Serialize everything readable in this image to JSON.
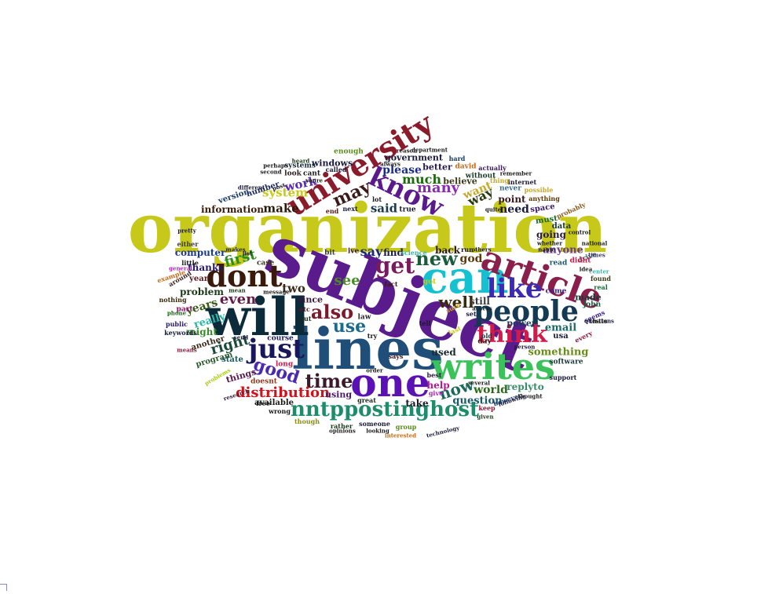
{
  "words": [
    {
      "text": "organization",
      "color": "#c7c91a"
    },
    {
      "text": "subject",
      "color": "#5a1b8c"
    },
    {
      "text": "lines",
      "color": "#1f4e79"
    },
    {
      "text": "will",
      "color": "#0b2a3a"
    },
    {
      "text": "can",
      "color": "#13c1d0"
    },
    {
      "text": "writes",
      "color": "#3bc25a"
    },
    {
      "text": "one",
      "color": "#5b12b5"
    },
    {
      "text": "article",
      "color": "#8a1f4b"
    },
    {
      "text": "university",
      "color": "#8a1b2b"
    },
    {
      "text": "people",
      "color": "#133a52"
    },
    {
      "text": "dont",
      "color": "#3a1a0b"
    },
    {
      "text": "just",
      "color": "#17175a"
    },
    {
      "text": "know",
      "color": "#5a1a8c"
    },
    {
      "text": "like",
      "color": "#3a2ab5"
    },
    {
      "text": "think",
      "color": "#d21a4b"
    },
    {
      "text": "nntppostinghost",
      "color": "#1e8c6a"
    },
    {
      "text": "get",
      "color": "#7a1a5c"
    },
    {
      "text": "also",
      "color": "#7a1a2b"
    },
    {
      "text": "time",
      "color": "#3a1a2b"
    },
    {
      "text": "good",
      "color": "#4a2ab5"
    },
    {
      "text": "new",
      "color": "#1a5c3a"
    },
    {
      "text": "many",
      "color": "#8a2ab5"
    },
    {
      "text": "may",
      "color": "#3a1a1a"
    },
    {
      "text": "use",
      "color": "#1a6a8c"
    },
    {
      "text": "well",
      "color": "#3a2a0b"
    },
    {
      "text": "now",
      "color": "#1a6a5c"
    },
    {
      "text": "distribution",
      "color": "#d2121a"
    },
    {
      "text": "much",
      "color": "#1a6a0b"
    },
    {
      "text": "way",
      "color": "#2a3a0b"
    },
    {
      "text": "even",
      "color": "#6a1a4b"
    },
    {
      "text": "right",
      "color": "#1a4a3a"
    },
    {
      "text": "first",
      "color": "#2a8c1a"
    },
    {
      "text": "see",
      "color": "#4a8c2a"
    },
    {
      "text": "say",
      "color": "#1a2a7a"
    },
    {
      "text": "make",
      "color": "#2a1a0b"
    },
    {
      "text": "system",
      "color": "#c7c91a"
    },
    {
      "text": "work",
      "color": "#5a2ab5"
    },
    {
      "text": "two",
      "color": "#3a2a1a"
    },
    {
      "text": "want",
      "color": "#c7a92a"
    },
    {
      "text": "said",
      "color": "#1a3a4b"
    },
    {
      "text": "need",
      "color": "#1a1a3a"
    },
    {
      "text": "please",
      "color": "#1a2a8c"
    },
    {
      "text": "god",
      "color": "#5a3a0b"
    },
    {
      "text": "years",
      "color": "#3a5a1a"
    },
    {
      "text": "world",
      "color": "#2a6a1a"
    },
    {
      "text": "question",
      "color": "#1a5a6a"
    },
    {
      "text": "replyto",
      "color": "#3a8c6a"
    },
    {
      "text": "something",
      "color": "#6a8c1a"
    },
    {
      "text": "email",
      "color": "#1a6a6a"
    },
    {
      "text": "computer",
      "color": "#1a3a8c"
    },
    {
      "text": "thanks",
      "color": "#2a1a6a"
    },
    {
      "text": "problem",
      "color": "#1a3a1a"
    },
    {
      "text": "information",
      "color": "#3a1a0b"
    },
    {
      "text": "really",
      "color": "#2ab5a9"
    },
    {
      "text": "might",
      "color": "#3a8c2a"
    },
    {
      "text": "going",
      "color": "#2a1a3a"
    },
    {
      "text": "anyone",
      "color": "#6a3a8c"
    },
    {
      "text": "government",
      "color": "#1a1a3a"
    },
    {
      "text": "used",
      "color": "#1a2a2a"
    },
    {
      "text": "help",
      "color": "#b51a8c"
    },
    {
      "text": "take",
      "color": "#1a1a2a"
    },
    {
      "text": "available",
      "color": "#1a1a1a"
    },
    {
      "text": "using",
      "color": "#4a1a6a"
    },
    {
      "text": "since",
      "color": "#3a1a3a"
    },
    {
      "text": "still",
      "color": "#3a3a3a"
    },
    {
      "text": "back",
      "color": "#2a1a1a"
    },
    {
      "text": "point",
      "color": "#3a1a1a"
    },
    {
      "text": "made",
      "color": "#1a3a3a"
    },
    {
      "text": "find",
      "color": "#1a1a4b"
    },
    {
      "text": "believe",
      "color": "#3a3a1a"
    },
    {
      "text": "better",
      "color": "#2a1a4b"
    },
    {
      "text": "things",
      "color": "#5a1a4b"
    },
    {
      "text": "program",
      "color": "#2a5a2a"
    },
    {
      "text": "another",
      "color": "#3a2a1a"
    },
    {
      "text": "state",
      "color": "#1a5a5a"
    },
    {
      "text": "data",
      "color": "#1a3a2a"
    },
    {
      "text": "must",
      "color": "#1a6a2a"
    },
    {
      "text": "space",
      "color": "#3a1a6a"
    },
    {
      "text": "windows",
      "color": "#1a1a3a"
    },
    {
      "text": "number",
      "color": "#1a2a5a"
    },
    {
      "text": "version",
      "color": "#1a3a6a"
    },
    {
      "text": "usa",
      "color": "#1a1a3a"
    },
    {
      "text": "power",
      "color": "#1a3a5a"
    },
    {
      "text": "day",
      "color": "#3a1a1a"
    },
    {
      "text": "course",
      "color": "#1a1a5a"
    },
    {
      "text": "doesnt",
      "color": "#8c3a1a"
    },
    {
      "text": "software",
      "color": "#1a3a3a"
    },
    {
      "text": "john",
      "color": "#1a5a3a"
    },
    {
      "text": "read",
      "color": "#1a5a6a"
    },
    {
      "text": "come",
      "color": "#3a1a8c"
    },
    {
      "text": "drive",
      "color": "#3a5a6a"
    },
    {
      "text": "long",
      "color": "#d21a4b"
    },
    {
      "text": "year",
      "color": "#5a1a1a"
    },
    {
      "text": "case",
      "color": "#3a3a1a"
    },
    {
      "text": "law",
      "color": "#2a2a2a"
    },
    {
      "text": "bit",
      "color": "#3a3a3a"
    },
    {
      "text": "ive",
      "color": "#3a1a3a"
    },
    {
      "text": "true",
      "color": "#1a1a2a"
    },
    {
      "text": "without",
      "color": "#1a3a2a"
    },
    {
      "text": "never",
      "color": "#3a6a8c"
    },
    {
      "text": "anything",
      "color": "#5a3a0b"
    },
    {
      "text": "probably",
      "color": "#8c5a1a"
    },
    {
      "text": "thing",
      "color": "#c7a92a"
    },
    {
      "text": "enough",
      "color": "#5a8c1a"
    },
    {
      "text": "systems",
      "color": "#1a2a3a"
    },
    {
      "text": "look",
      "color": "#2a1a1a"
    },
    {
      "text": "cant",
      "color": "#1a1a1a"
    },
    {
      "text": "david",
      "color": "#c76a1a"
    },
    {
      "text": "actually",
      "color": "#3a1a5a"
    },
    {
      "text": "internet",
      "color": "#1a1a3a"
    },
    {
      "text": "little",
      "color": "#1a1a1a"
    },
    {
      "text": "around",
      "color": "#3a1a1a"
    },
    {
      "text": "either",
      "color": "#3a3a3a"
    },
    {
      "text": "keywords",
      "color": "#1a1a3a"
    },
    {
      "text": "public",
      "color": "#2a1a6a"
    },
    {
      "text": "nothing",
      "color": "#3a2a0b"
    },
    {
      "text": "part",
      "color": "#8c1a6a"
    },
    {
      "text": "science",
      "color": "#3ab5a9"
    },
    {
      "text": "group",
      "color": "#5a8c1a"
    },
    {
      "text": "someone",
      "color": "#1a1a3a"
    },
    {
      "text": "however",
      "color": "#1a3a6a"
    },
    {
      "text": "tell",
      "color": "#1a1a2a"
    },
    {
      "text": "last",
      "color": "#c7c91a"
    },
    {
      "text": "sure",
      "color": "#c7a92a"
    },
    {
      "text": "says",
      "color": "#3a1a1a"
    },
    {
      "text": "best",
      "color": "#2a1a3a"
    },
    {
      "text": "give",
      "color": "#a92ab5"
    },
    {
      "text": "great",
      "color": "#1a2a1a"
    },
    {
      "text": "try",
      "color": "#1a1a1a"
    },
    {
      "text": "fact",
      "color": "#3a1a1a"
    },
    {
      "text": "lot",
      "color": "#1a1a1a"
    },
    {
      "text": "next",
      "color": "#1a1a3a"
    },
    {
      "text": "end",
      "color": "#5a1a1a"
    },
    {
      "text": "put",
      "color": "#1a2a1a"
    },
    {
      "text": "etc",
      "color": "#5a1a1a"
    },
    {
      "text": "free",
      "color": "#1a1a1a"
    },
    {
      "text": "got",
      "color": "#c7c91a"
    },
    {
      "text": "send",
      "color": "#1a1a3a"
    },
    {
      "text": "rather",
      "color": "#1a3a1a"
    },
    {
      "text": "though",
      "color": "#8c8c1a"
    },
    {
      "text": "wrong",
      "color": "#1a1a1a"
    },
    {
      "text": "didnt",
      "color": "#d21a4b"
    },
    {
      "text": "found",
      "color": "#3a3a1a"
    },
    {
      "text": "real",
      "color": "#1a6a3a"
    },
    {
      "text": "seems",
      "color": "#3a1a8c"
    },
    {
      "text": "thats",
      "color": "#2a2a1a"
    },
    {
      "text": "questions",
      "color": "#1a1a3a"
    },
    {
      "text": "every",
      "color": "#8c1a3a"
    },
    {
      "text": "support",
      "color": "#1a1a3a"
    },
    {
      "text": "keep",
      "color": "#8c1a3a"
    },
    {
      "text": "given",
      "color": "#1a3a1a"
    },
    {
      "text": "old",
      "color": "#1a3a3a"
    },
    {
      "text": "set",
      "color": "#1a1a3a"
    },
    {
      "text": "run",
      "color": "#1a1a1a"
    },
    {
      "text": "mean",
      "color": "#1a3a1a"
    },
    {
      "text": "list",
      "color": "#1a1a3a"
    },
    {
      "text": "makes",
      "color": "#1a1a1a"
    },
    {
      "text": "called",
      "color": "#1a1a3a"
    },
    {
      "text": "youre",
      "color": "#1a1a1a"
    },
    {
      "text": "hard",
      "color": "#1a3a5a"
    },
    {
      "text": "reason",
      "color": "#1a1a1a"
    },
    {
      "text": "different",
      "color": "#1a1a3a"
    },
    {
      "text": "post",
      "color": "#1a1a1a"
    },
    {
      "text": "general",
      "color": "#a92ab5"
    },
    {
      "text": "example",
      "color": "#c76a1a"
    },
    {
      "text": "name",
      "color": "#1a1a1a"
    },
    {
      "text": "possible",
      "color": "#c7a92a"
    },
    {
      "text": "research",
      "color": "#3a1a3a"
    },
    {
      "text": "technology",
      "color": "#1a1a3a"
    },
    {
      "text": "means",
      "color": "#8c1a3a"
    },
    {
      "text": "pretty",
      "color": "#1a1a1a"
    },
    {
      "text": "second",
      "color": "#1a1a1a"
    },
    {
      "text": "opinions",
      "color": "#1a1a1a"
    },
    {
      "text": "looking",
      "color": "#1a1a1a"
    },
    {
      "text": "interested",
      "color": "#c76a1a"
    },
    {
      "text": "control",
      "color": "#1a1a1a"
    },
    {
      "text": "national",
      "color": "#1a1a1a"
    },
    {
      "text": "times",
      "color": "#3a3a6a"
    },
    {
      "text": "center",
      "color": "#3ab5a9"
    },
    {
      "text": "message",
      "color": "#1a1a1a"
    },
    {
      "text": "access",
      "color": "#1a1a1a"
    },
    {
      "text": "order",
      "color": "#1a1a1a"
    },
    {
      "text": "problems",
      "color": "#a9c91a"
    },
    {
      "text": "phone",
      "color": "#1a6a1a"
    },
    {
      "text": "several",
      "color": "#1a1a1a"
    },
    {
      "text": "thought",
      "color": "#1a1a1a"
    },
    {
      "text": "following",
      "color": "#1a1a3a"
    },
    {
      "text": "person",
      "color": "#1a1a3a"
    },
    {
      "text": "idea",
      "color": "#1a1a1a"
    },
    {
      "text": "quite",
      "color": "#1a1a1a"
    },
    {
      "text": "whether",
      "color": "#1a1a1a"
    },
    {
      "text": "others",
      "color": "#1a1a1a"
    },
    {
      "text": "perhaps",
      "color": "#1a1a1a"
    },
    {
      "text": "heard",
      "color": "#1a3a1a"
    },
    {
      "text": "remember",
      "color": "#1a1a1a"
    },
    {
      "text": "always",
      "color": "#1a1a1a"
    },
    {
      "text": "department",
      "color": "#1a1a1a"
    }
  ]
}
